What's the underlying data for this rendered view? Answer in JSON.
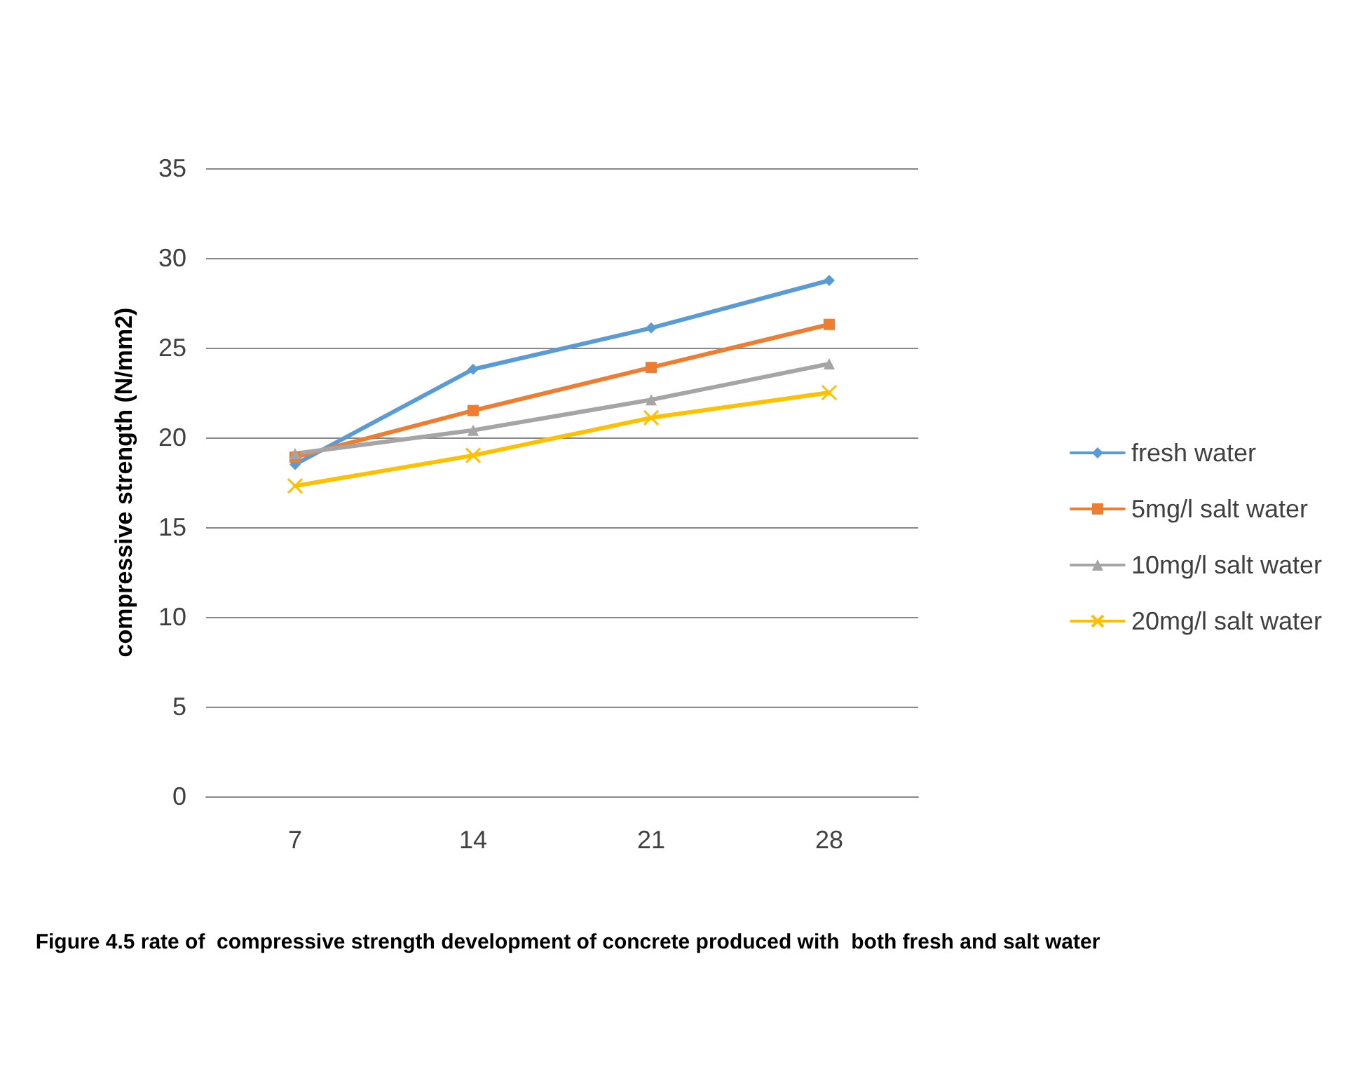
{
  "chart_data": {
    "type": "line",
    "ylabel": "compressive strength (N/mm2)",
    "categories": [
      "7",
      "14",
      "21",
      "28"
    ],
    "series": [
      {
        "name": "fresh water",
        "color": "#5b9bd5",
        "marker": "diamond",
        "values": [
          18.5,
          23.8,
          26.1,
          28.75
        ]
      },
      {
        "name": "5mg/l salt water",
        "color": "#ed7d31",
        "marker": "square",
        "values": [
          18.9,
          21.5,
          23.9,
          26.3
        ]
      },
      {
        "name": "10mg/l salt water",
        "color": "#a5a5a5",
        "marker": "triangle",
        "values": [
          19.1,
          20.4,
          22.1,
          24.1
        ]
      },
      {
        "name": "20mg/l salt water",
        "color": "#ffc000",
        "marker": "cross",
        "values": [
          17.3,
          19.0,
          21.1,
          22.5
        ]
      }
    ],
    "ylim": [
      0,
      35
    ],
    "yticks": [
      0,
      5,
      10,
      15,
      20,
      25,
      30,
      35
    ],
    "grid": "y",
    "legend": "right",
    "annotations": [
      "Figure 4.5 rate of  compressive strength development of concrete produced with  both fresh and salt water"
    ]
  }
}
